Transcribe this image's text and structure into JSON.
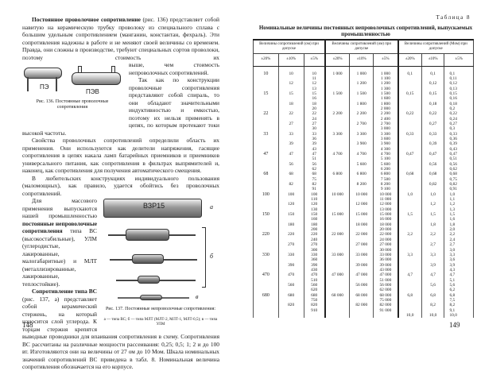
{
  "left": {
    "p1_lead": "Постоянное проволочное сопротивление",
    "p1_a": " (рис. 136) представляет собой навитую на керамическую трубку проволоку из специального сплава с большим удельным сопротивлением (манганин, константан, фехраль). Эти сопротивления надежны в работе и не меняют своей величины со временем. Правда, они сложны в производстве, требуют специальных сортов проволоки, поэтому стоимость их",
    "p1_b": "выше, чем стоимость непроволочных сопротивлений.",
    "p2": "Так как по конструкции проволочные сопротивления представляют собой спираль, то они обладают значительными индуктивностью и емкостью, поэтому их нельзя применять в цепях, по которым протекают токи высокой частоты.",
    "fig136": {
      "label_a": "ПЭ",
      "label_b": "ПЭВ",
      "caption": "Рис. 136. Постоянные проволочные сопротивления"
    },
    "p3": "Свойства проволочных сопротивлений определили область их применения. Они используются как делители напряжения, гасящие сопротивления в цепях накала ламп батарейных приемников и приемников универсального питания, как сопротивления в фильтрах выпрямителей и, наконец, как сопротивления для получения автоматического смещения.",
    "p4": "В любительских конструкциях индивидуального пользования (маломощных), как правило, удается обойтись без проволочных сопротивлений.",
    "p5_a": "Для массового применения выпускаются нашей промышленностью ",
    "p5_bold": "постоянные непроволочные сопротивления",
    "p5_b": " типа ВС (высокостабильные), УЛМ (углеродистые, лакированные, малогабаритные) и МЛТ (металлизированные, лакированные, теплостойкие).",
    "p6_bold": "Сопротивление типа ВС",
    "p6": " (рис. 137, а) представляет собой керамический стержень, на который наносится слой углерода. К торцам стержня крепятся выводные проводники для впаивания сопротивления в схему. Сопротивления ВС рассчитаны на различные мощности рассеивания: 0,25; 0,5; 1; 2 и до 100 вт. Изготовляются они на величины от 27 ом до 10 Мом. Шкала номинальных значений сопротивлений ВС приведена в табл. 8. Номинальная величина сопротивления обозначается на его корпусе.",
    "fig137": {
      "marking": "ВЗР15",
      "label_a": "а",
      "label_b": "б",
      "label_c": "в",
      "caption": "Рис. 137. Постоянные непроволочные сопротивления:",
      "legend": "а — типа ВС; б — типа МЛТ (МЛТ-2, МЛТ-1, МЛТ-0,5); в — типа УЛМ"
    },
    "page_number": "148"
  },
  "right": {
    "table_number": "Таблица 8",
    "title": "Номинальные величины постоянных непроволочных сопротивлений, выпускаемых промышленностью",
    "groups": [
      "Величины сопротивлений (ом) при допуске",
      "Величины сопротивлений (ом) при допуске",
      "Величины сопротивлений (Мом) при допуске"
    ],
    "tolerances": [
      "±20%",
      "±10%",
      "±5%",
      "±20%",
      "±10%",
      "±5%",
      "±20%",
      "±10%",
      "±5%"
    ],
    "rows": [
      [
        "10",
        "10",
        "10",
        "1 000",
        "1 000",
        "1 000",
        "0,1",
        "0,1",
        "0,1"
      ],
      [
        "",
        "",
        "11",
        "",
        "",
        "1 100",
        "",
        "",
        "0,11"
      ],
      [
        "",
        "12",
        "12",
        "",
        "1 200",
        "1 200",
        "",
        "0,12",
        "0,12"
      ],
      [
        "",
        "",
        "13",
        "",
        "",
        "1 300",
        "",
        "",
        "0,13"
      ],
      [
        "15",
        "15",
        "15",
        "1 500",
        "1 500",
        "1 500",
        "0,15",
        "0,15",
        "0,15"
      ],
      [
        "",
        "",
        "16",
        "",
        "",
        "1 600",
        "",
        "",
        "0,16"
      ],
      [
        "",
        "18",
        "18",
        "",
        "1 800",
        "1 800",
        "",
        "0,18",
        "0,18"
      ],
      [
        "",
        "",
        "20",
        "",
        "",
        "2 000",
        "",
        "",
        "0,2"
      ],
      [
        "22",
        "22",
        "22",
        "2 200",
        "2 200",
        "2 200",
        "0,22",
        "0,22",
        "0,22"
      ],
      [
        "",
        "",
        "24",
        "",
        "",
        "2 400",
        "",
        "",
        "0,24"
      ],
      [
        "",
        "27",
        "27",
        "",
        "2 700",
        "2 700",
        "",
        "0,27",
        "0,27"
      ],
      [
        "",
        "",
        "30",
        "",
        "",
        "3 000",
        "",
        "",
        "0,3"
      ],
      [
        "33",
        "33",
        "33",
        "3 300",
        "3 300",
        "3 300",
        "0,33",
        "0,33",
        "0,33"
      ],
      [
        "",
        "",
        "36",
        "",
        "",
        "3 600",
        "",
        "",
        "0,36"
      ],
      [
        "",
        "39",
        "39",
        "",
        "3 900",
        "3 900",
        "",
        "0,39",
        "0,39"
      ],
      [
        "",
        "",
        "43",
        "",
        "",
        "4 300",
        "",
        "",
        "0,43"
      ],
      [
        "47",
        "47",
        "47",
        "4 700",
        "4 700",
        "4 700",
        "0,47",
        "0,47",
        "0,47"
      ],
      [
        "",
        "",
        "51",
        "",
        "",
        "5 100",
        "",
        "",
        "0,51"
      ],
      [
        "",
        "56",
        "56",
        "",
        "5 600",
        "5 600",
        "",
        "0,56",
        "0,56"
      ],
      [
        "",
        "",
        "62",
        "",
        "",
        "6 200",
        "",
        "",
        "0,62"
      ],
      [
        "68",
        "68",
        "68",
        "6 800",
        "6 800",
        "6 800",
        "0,68",
        "0,68",
        "0,68"
      ],
      [
        "",
        "",
        "75",
        "",
        "",
        "7 500",
        "",
        "",
        "0,75"
      ],
      [
        "",
        "82",
        "82",
        "",
        "8 200",
        "8 200",
        "",
        "0,82",
        "0,82"
      ],
      [
        "",
        "",
        "91",
        "",
        "",
        "9 100",
        "",
        "",
        "0,91"
      ],
      [
        "100",
        "100",
        "100",
        "10 000",
        "10 000",
        "10 000",
        "1,0",
        "1,0",
        "1,0"
      ],
      [
        "",
        "",
        "110",
        "",
        "",
        "11 000",
        "",
        "",
        "1,1"
      ],
      [
        "",
        "120",
        "120",
        "",
        "12 000",
        "12 000",
        "",
        "1,2",
        "1,2"
      ],
      [
        "",
        "",
        "130",
        "",
        "",
        "13 000",
        "",
        "",
        "1,3"
      ],
      [
        "150",
        "150",
        "150",
        "15 000",
        "15 000",
        "15 000",
        "1,5",
        "1,5",
        "1,5"
      ],
      [
        "",
        "",
        "160",
        "",
        "",
        "16 000",
        "",
        "",
        "1,6"
      ],
      [
        "",
        "180",
        "180",
        "",
        "18 000",
        "18 000",
        "",
        "1,8",
        "1,8"
      ],
      [
        "",
        "",
        "200",
        "",
        "",
        "20 000",
        "",
        "",
        "2,0"
      ],
      [
        "220",
        "220",
        "220",
        "22 000",
        "22 000",
        "22 000",
        "2,2",
        "2,2",
        "2,2"
      ],
      [
        "",
        "",
        "240",
        "",
        "",
        "24 000",
        "",
        "",
        "2,4"
      ],
      [
        "",
        "270",
        "270",
        "",
        "27 000",
        "27 000",
        "",
        "2,7",
        "2,7"
      ],
      [
        "",
        "",
        "300",
        "",
        "",
        "30 000",
        "",
        "",
        "3,0"
      ],
      [
        "330",
        "330",
        "330",
        "33 000",
        "33 000",
        "33 000",
        "3,3",
        "3,3",
        "3,3"
      ],
      [
        "",
        "",
        "360",
        "",
        "",
        "36 000",
        "",
        "",
        "3,6"
      ],
      [
        "",
        "390",
        "390",
        "",
        "39 000",
        "39 000",
        "",
        "3,9",
        "3,9"
      ],
      [
        "",
        "",
        "430",
        "",
        "",
        "43 000",
        "",
        "",
        "4,3"
      ],
      [
        "470",
        "470",
        "470",
        "47 000",
        "47 000",
        "47 000",
        "4,7",
        "4,7",
        "4,7"
      ],
      [
        "",
        "",
        "510",
        "",
        "",
        "51 000",
        "",
        "",
        "5,1"
      ],
      [
        "",
        "560",
        "560",
        "",
        "56 000",
        "56 000",
        "",
        "5,6",
        "5,6"
      ],
      [
        "",
        "",
        "620",
        "",
        "",
        "62 000",
        "",
        "",
        "6,2"
      ],
      [
        "680",
        "680",
        "680",
        "68 000",
        "68 000",
        "68 000",
        "6,8",
        "6,8",
        "6,8"
      ],
      [
        "",
        "",
        "750",
        "",
        "",
        "75 000",
        "",
        "",
        "7,5"
      ],
      [
        "",
        "820",
        "820",
        "",
        "82 000",
        "82 000",
        "",
        "8,2",
        "8,2"
      ],
      [
        "",
        "",
        "910",
        "",
        "",
        "91 000",
        "",
        "",
        "9,1"
      ],
      [
        "",
        "",
        "",
        "",
        "",
        "",
        "10,0",
        "10,0",
        "10,0"
      ]
    ],
    "page_number": "149"
  }
}
